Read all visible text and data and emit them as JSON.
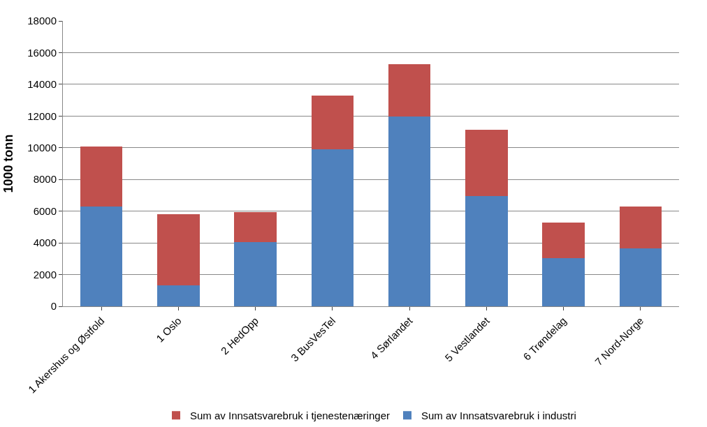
{
  "chart_data": {
    "type": "bar",
    "stacked": true,
    "ylabel": "1000 tonn",
    "categories": [
      "1 Akershus og Østfold",
      "1 Oslo",
      "2 HedOpp",
      "3 BusVesTel",
      "4 Sørlandet",
      "5 Vestlandet",
      "6 Trøndelag",
      "7 Nord-Norge"
    ],
    "series": [
      {
        "name": "Sum av Innsatsvarebruk i industri",
        "color": "#4f81bd",
        "values": [
          6300,
          1300,
          4050,
          9900,
          11950,
          6950,
          3050,
          3650
        ]
      },
      {
        "name": "Sum av Innsatsvarebruk i tjenestenæringer",
        "color": "#c0504d",
        "values": [
          3800,
          4500,
          1900,
          3400,
          3300,
          4200,
          2250,
          2650
        ]
      }
    ],
    "ylim": [
      0,
      18000
    ],
    "yticks": [
      0,
      2000,
      4000,
      6000,
      8000,
      10000,
      12000,
      14000,
      16000,
      18000
    ],
    "grid": "y",
    "legend": "bottom"
  }
}
